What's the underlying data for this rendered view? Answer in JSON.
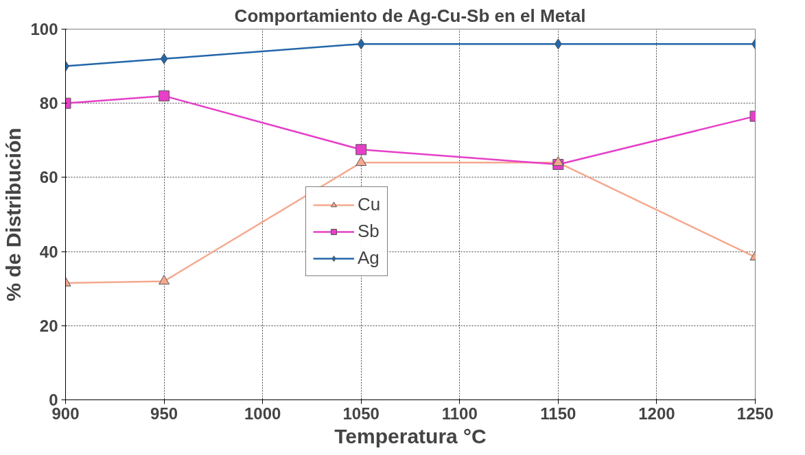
{
  "chart_data": {
    "type": "line",
    "title": "Comportamiento de Ag-Cu-Sb en el Metal",
    "xlabel": "Temperatura °C",
    "ylabel": "% de Distribución",
    "x": [
      900,
      950,
      1050,
      1150,
      1250
    ],
    "series": [
      {
        "name": "Cu",
        "color": "#f5a88e",
        "marker": "triangle",
        "values": [
          31.5,
          32,
          64,
          64,
          38.5
        ]
      },
      {
        "name": "Sb",
        "color": "#e63fc8",
        "marker": "square",
        "values": [
          80,
          82,
          67.5,
          63.5,
          76.5
        ]
      },
      {
        "name": "Ag",
        "color": "#2266aa",
        "marker": "diamond",
        "values": [
          90,
          92,
          96,
          96,
          96
        ]
      }
    ],
    "xlim": [
      900,
      1250
    ],
    "xticks": [
      900,
      950,
      1000,
      1050,
      1100,
      1150,
      1200,
      1250
    ],
    "ylim": [
      0,
      100
    ],
    "yticks": [
      0,
      20,
      40,
      60,
      80,
      100
    ],
    "grid": true,
    "legend": "center",
    "line_style": "solid"
  }
}
